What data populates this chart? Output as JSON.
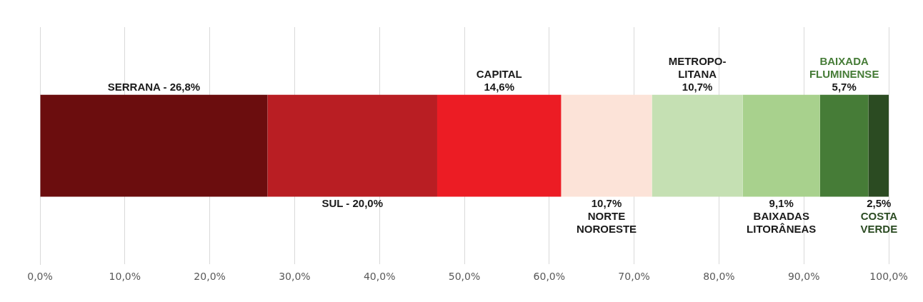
{
  "chart_data": {
    "type": "bar",
    "orientation": "horizontal",
    "stacked": true,
    "categories": [
      null
    ],
    "series": [
      {
        "color": "#6b0d0e",
        "values": [
          26.8
        ],
        "value_labels": [
          "SERRANA ‑ 26,8%"
        ]
      },
      {
        "color": "#b91e23",
        "values": [
          20.0
        ],
        "value_labels": [
          "SUL ‑ 20,0%"
        ]
      },
      {
        "name": "CAPITAL",
        "color": "#ec1c24",
        "values": [
          14.6
        ],
        "value_labels": [
          "14,6%"
        ]
      },
      {
        "name": "NORTE\nNOROESTE",
        "color": "#fce3d8",
        "values": [
          10.7
        ],
        "value_labels": [
          "10,7%"
        ]
      },
      {
        "name": "METROPO-\nLITANA",
        "color": "#c5e0b3",
        "values": [
          10.7
        ],
        "value_labels": [
          "10,7%"
        ]
      },
      {
        "name": "BAIXADAS\nLITORÂNEAS",
        "color": "#a8d18d",
        "values": [
          9.1
        ],
        "value_labels": [
          "9,1%"
        ]
      },
      {
        "name": "BAIXADA\nFLUMINENSE",
        "color": "#467c37",
        "values": [
          5.7
        ],
        "value_labels": [
          "5,7%"
        ]
      },
      {
        "name": "COSTA\nVERDE",
        "color": "#2b4b22",
        "values": [
          2.5
        ],
        "value_labels": [
          "2,5%"
        ]
      }
    ],
    "xlim": [
      0,
      100
    ],
    "xticks": [
      {
        "value": 0,
        "label": "0,0%"
      },
      {
        "value": 10,
        "label": "10,0%"
      },
      {
        "value": 20,
        "label": "20,0%"
      },
      {
        "value": 30,
        "label": "30,0%"
      },
      {
        "value": 40,
        "label": "40,0%"
      },
      {
        "value": 50,
        "label": "50,0%"
      },
      {
        "value": 60,
        "label": "60,0%"
      },
      {
        "value": 70,
        "label": "70,0%"
      },
      {
        "value": 80,
        "label": "80,0%"
      },
      {
        "value": 90,
        "label": "90,0%"
      },
      {
        "value": 100,
        "label": "100,0%"
      }
    ],
    "grid": "x",
    "legend": false
  }
}
